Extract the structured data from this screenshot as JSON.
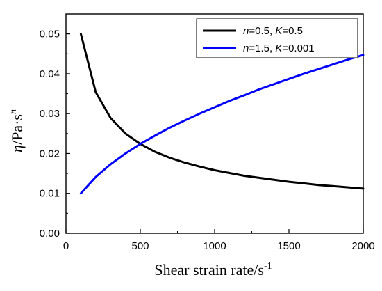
{
  "chart_data": {
    "type": "line",
    "title": "",
    "xlabel": "Shear strain rate/s",
    "xlabel_sup": "-1",
    "ylabel_symbol": "η",
    "ylabel_unit": "/Pa·s",
    "ylabel_sup": "n",
    "xlim": [
      0,
      2000
    ],
    "ylim": [
      0,
      0.055
    ],
    "xticks": [
      0,
      500,
      1000,
      1500,
      2000
    ],
    "yticks": [
      0.0,
      0.01,
      0.02,
      0.03,
      0.04,
      0.05
    ],
    "xtick_labels": [
      "0",
      "500",
      "1000",
      "1500",
      "2000"
    ],
    "ytick_labels": [
      "0.00",
      "0.01",
      "0.02",
      "0.03",
      "0.04",
      "0.05"
    ],
    "grid": false,
    "legend_position": "top-right",
    "series": [
      {
        "name": "n=0.5, K=0.5",
        "legend_parts": [
          {
            "text": "n",
            "italic": true
          },
          {
            "text": "=0.5, ",
            "italic": false
          },
          {
            "text": "K",
            "italic": true
          },
          {
            "text": "=0.5",
            "italic": false
          }
        ],
        "color": "#000000",
        "x": [
          100,
          200,
          300,
          400,
          500,
          600,
          700,
          800,
          900,
          1000,
          1100,
          1200,
          1300,
          1400,
          1500,
          1600,
          1700,
          1800,
          1900,
          2000
        ],
        "y": [
          0.05,
          0.0354,
          0.0289,
          0.025,
          0.0224,
          0.0204,
          0.0189,
          0.0177,
          0.0167,
          0.0158,
          0.0151,
          0.0144,
          0.0139,
          0.0134,
          0.0129,
          0.0125,
          0.0121,
          0.0118,
          0.0115,
          0.0112
        ]
      },
      {
        "name": "n=1.5, K=0.001",
        "legend_parts": [
          {
            "text": "n",
            "italic": true
          },
          {
            "text": "=1.5, ",
            "italic": false
          },
          {
            "text": "K",
            "italic": true
          },
          {
            "text": "=0.001",
            "italic": false
          }
        ],
        "color": "#0000ff",
        "x": [
          100,
          200,
          300,
          400,
          500,
          600,
          700,
          800,
          900,
          1000,
          1100,
          1200,
          1300,
          1400,
          1500,
          1600,
          1700,
          1800,
          1900,
          2000
        ],
        "y": [
          0.01,
          0.0141,
          0.0173,
          0.02,
          0.0224,
          0.0245,
          0.0265,
          0.0283,
          0.03,
          0.0316,
          0.0332,
          0.0346,
          0.0361,
          0.0374,
          0.0387,
          0.04,
          0.0412,
          0.0424,
          0.0436,
          0.0447
        ]
      }
    ]
  }
}
